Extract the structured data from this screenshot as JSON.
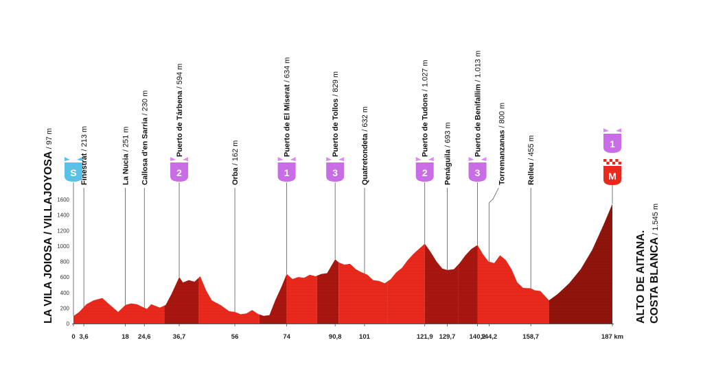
{
  "start": {
    "name": "LA VILA JOIOSA / VILLAJOYOSA",
    "alt": " / 97 m",
    "badge": "S",
    "badge_color": "#5bc2e7"
  },
  "finish": {
    "name_line1": "ALTO DE AITANA.",
    "name_line2": "COSTA BLANCA",
    "alt": " / 1.545 m",
    "badge": "M",
    "cat_badge": "1",
    "badge_color": "#e8291c"
  },
  "waypoints": [
    {
      "name": "Finestrat",
      "alt": " / 213 m",
      "km": 3.6
    },
    {
      "name": "La Nucia",
      "alt": " / 251 m",
      "km": 18
    },
    {
      "name": "Callosa d'en Sarria",
      "alt": " / 230 m",
      "km": 24.6
    },
    {
      "name": "Puerto de Tárbena",
      "alt": " / 594 m",
      "km": 36.7,
      "cat": "2"
    },
    {
      "name": "Orba",
      "alt": " / 162 m",
      "km": 56
    },
    {
      "name": "Puerto de El Miserat",
      "alt": " / 634 m",
      "km": 74,
      "cat": "1"
    },
    {
      "name": "Puerto de Tollos",
      "alt": " / 829 m",
      "km": 90.8,
      "cat": "3"
    },
    {
      "name": "Quatretondeta",
      "alt": " / 632 m",
      "km": 101
    },
    {
      "name": "Puerto de Tudons",
      "alt": " / 1.027 m",
      "km": 121.9,
      "cat": "2"
    },
    {
      "name": "Penáguila",
      "alt": " / 693 m",
      "km": 129.7
    },
    {
      "name": "Puerto de Benifallim",
      "alt": " / 1.013 m",
      "km": 140.2,
      "cat": "3"
    },
    {
      "name": "Torremanzanas",
      "alt": " / 800 m",
      "km": 144.2
    },
    {
      "name": "Relleu",
      "alt": " / 455 m",
      "km": 158.7
    }
  ],
  "colors": {
    "profile_light": "#e8291c",
    "profile_dark": "#a8170f",
    "profile_deep": "#8e140c",
    "kom_badge": "#c86de6",
    "kom_badge_light": "#d98bf0"
  },
  "chart_data": {
    "type": "area",
    "xlabel": "",
    "ylabel": "",
    "x_unit": "km",
    "y_ticks": [
      0,
      200,
      400,
      600,
      800,
      1000,
      1200,
      1400,
      1600
    ],
    "ylim": [
      0,
      1600
    ],
    "xlim": [
      0,
      187
    ],
    "x_ticks": [
      {
        "km": 0,
        "label": "0"
      },
      {
        "km": 3.6,
        "label": "3,6"
      },
      {
        "km": 18,
        "label": "18"
      },
      {
        "km": 24.6,
        "label": "24,6"
      },
      {
        "km": 36.7,
        "label": "36,7"
      },
      {
        "km": 56,
        "label": "56"
      },
      {
        "km": 74,
        "label": "74"
      },
      {
        "km": 90.8,
        "label": "90,8"
      },
      {
        "km": 101,
        "label": "101"
      },
      {
        "km": 121.9,
        "label": "121,9"
      },
      {
        "km": 129.7,
        "label": "129,7"
      },
      {
        "km": 140.2,
        "label": "140,2"
      },
      {
        "km": 144.2,
        "label": "144,2"
      },
      {
        "km": 158.7,
        "label": "158,7"
      },
      {
        "km": 187,
        "label": "187 km"
      }
    ],
    "series": [
      {
        "km": [
          0,
          2,
          4.5,
          7,
          10,
          13,
          15.5,
          18,
          20,
          22,
          24,
          25.5,
          27,
          30,
          32,
          34,
          36.7,
          38,
          40,
          42,
          44,
          46,
          48,
          51,
          54,
          56,
          58,
          60,
          62,
          64,
          66,
          68,
          70,
          72,
          74,
          76,
          78,
          80,
          82,
          84,
          86,
          88,
          90.8,
          92,
          94,
          96,
          98,
          100,
          102,
          104,
          106,
          108,
          110,
          112,
          114,
          116,
          118,
          121.9,
          124,
          126,
          128,
          129.7,
          132,
          134,
          136,
          138,
          140.2,
          142,
          144,
          146,
          148,
          150,
          152,
          154,
          156,
          158.7,
          160,
          162,
          165,
          168,
          172,
          176,
          180,
          184,
          187
        ],
        "alt": [
          97,
          150,
          250,
          300,
          330,
          230,
          150,
          240,
          260,
          250,
          215,
          190,
          250,
          205,
          240,
          380,
          600,
          530,
          560,
          540,
          610,
          430,
          300,
          240,
          160,
          150,
          120,
          130,
          175,
          125,
          100,
          110,
          300,
          460,
          640,
          575,
          600,
          590,
          630,
          610,
          640,
          650,
          829,
          790,
          760,
          770,
          700,
          660,
          630,
          560,
          550,
          520,
          570,
          660,
          720,
          820,
          900,
          1030,
          920,
          800,
          710,
          690,
          700,
          780,
          880,
          960,
          1013,
          900,
          800,
          780,
          880,
          820,
          700,
          530,
          460,
          455,
          430,
          420,
          300,
          380,
          520,
          700,
          950,
          1280,
          1545
        ],
        "tone": [
          {
            "from": 0,
            "to": 31.5,
            "shade": "light"
          },
          {
            "from": 31.5,
            "to": 43.5,
            "shade": "dark"
          },
          {
            "from": 43.5,
            "to": 64.5,
            "shade": "light"
          },
          {
            "from": 64.5,
            "to": 74,
            "shade": "dark"
          },
          {
            "from": 74,
            "to": 84.5,
            "shade": "light"
          },
          {
            "from": 84.5,
            "to": 92,
            "shade": "dark"
          },
          {
            "from": 92,
            "to": 109,
            "shade": "light"
          },
          {
            "from": 109,
            "to": 121.9,
            "shade": "light"
          },
          {
            "from": 121.9,
            "to": 133.5,
            "shade": "dark"
          },
          {
            "from": 133.5,
            "to": 140.2,
            "shade": "dark"
          },
          {
            "from": 140.2,
            "to": 165,
            "shade": "light"
          },
          {
            "from": 165,
            "to": 187,
            "shade": "deep"
          }
        ]
      }
    ]
  }
}
